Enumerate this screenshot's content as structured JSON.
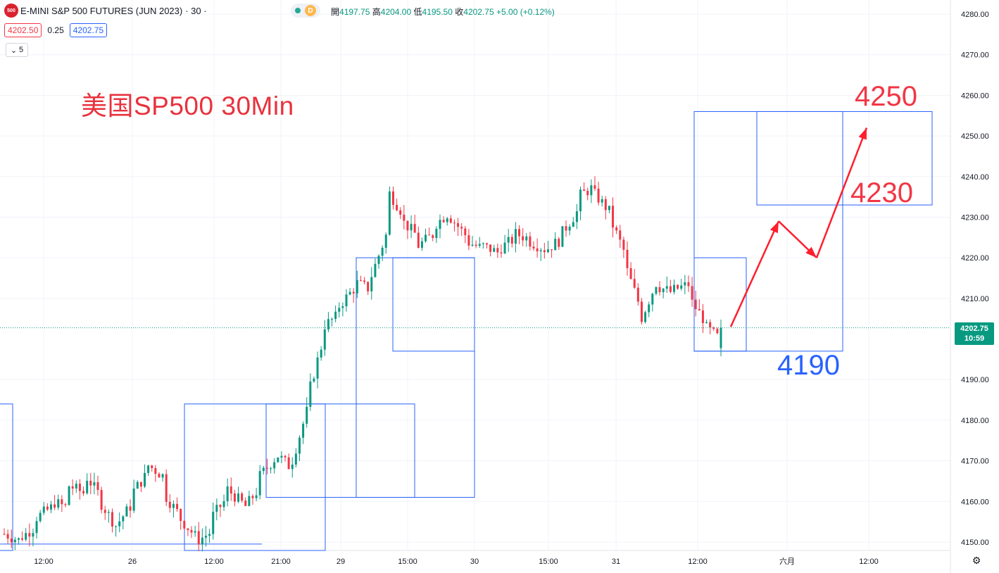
{
  "header": {
    "symbol_logo": "500",
    "title": "E-MINI S&P 500 FUTURES (JUN 2023)",
    "resolution": "· 30 ·",
    "status_badge": "D",
    "ohlc": {
      "open_label": "開",
      "open": "4197.75",
      "high_label": "高",
      "high": "4204.00",
      "low_label": "低",
      "low": "4195.50",
      "close_label": "收",
      "close": "4202.75",
      "change": "+5.00 (+0.12%)"
    }
  },
  "quote": {
    "sell": "4202.50",
    "spread": "0.25",
    "buy": "4202.75"
  },
  "indicator_toggle": {
    "icon": "chevron-down-icon",
    "count": "5"
  },
  "caption": "美国SP500 30Min",
  "annotations": {
    "target_high": "4250",
    "target_mid": "4230",
    "support": "4190"
  },
  "last_price_tag": {
    "price": "4202.75",
    "countdown": "10:59"
  },
  "settings_icon": "gear-icon",
  "colors": {
    "up": "#089981",
    "down": "#f23645",
    "box": "#2962ff",
    "arrow": "#ff1e2d"
  },
  "chart_data": {
    "type": "candlestick",
    "y_axis_ticks": [
      4280,
      4270,
      4260,
      4250,
      4240,
      4230,
      4220,
      4210,
      4190,
      4180,
      4170,
      4160,
      4150
    ],
    "ylim": [
      4148,
      4282
    ],
    "x_axis_labels": [
      "12:00",
      "26",
      "12:00",
      "21:00",
      "29",
      "15:00",
      "30",
      "15:00",
      "31",
      "12:00",
      "六月",
      "12:00"
    ],
    "last_price": 4202.75,
    "price_path": [
      [
        4152,
        4150
      ],
      [
        4151,
        4153
      ],
      [
        4156,
        4158
      ],
      [
        4160,
        4156
      ],
      [
        4164,
        4160
      ],
      [
        4167,
        4162
      ],
      [
        4160,
        4154
      ],
      [
        4154,
        4158
      ],
      [
        4162,
        4166
      ],
      [
        4169,
        4168
      ],
      [
        4162,
        4157
      ],
      [
        4156,
        4152
      ],
      [
        4150,
        4151
      ],
      [
        4156,
        4160
      ],
      [
        4163,
        4160
      ],
      [
        4158,
        4162
      ],
      [
        4166,
        4170
      ],
      [
        4172,
        4168
      ],
      [
        4169,
        4181
      ],
      [
        4185,
        4198
      ],
      [
        4203,
        4205
      ],
      [
        4208,
        4212
      ],
      [
        4214,
        4211
      ],
      [
        4215,
        4221
      ],
      [
        4237,
        4232
      ],
      [
        4229,
        4226
      ],
      [
        4223,
        4225
      ],
      [
        4228,
        4232
      ],
      [
        4230,
        4226
      ],
      [
        4224,
        4222
      ],
      [
        4223,
        4221
      ],
      [
        4222,
        4224
      ],
      [
        4226,
        4225
      ],
      [
        4224,
        4222
      ],
      [
        4222,
        4224
      ],
      [
        4226,
        4230
      ],
      [
        4235,
        4238
      ],
      [
        4236,
        4232
      ],
      [
        4230,
        4222
      ],
      [
        4218,
        4208
      ],
      [
        4205,
        4215
      ],
      [
        4213,
        4211
      ],
      [
        4212,
        4215
      ],
      [
        4210,
        4205
      ],
      [
        4203,
        4201
      ],
      [
        4197,
        4202.75
      ]
    ],
    "boxes": [
      {
        "from": "26 21:00",
        "to": "29 03:00",
        "low": 4161,
        "high": 4184
      },
      {
        "from": "29 03:00",
        "to": "29 14:00",
        "low": 4161,
        "high": 4184
      },
      {
        "from": "29 08:00",
        "to": "30 00:00",
        "low": 4161,
        "high": 4220
      },
      {
        "from": "29 13:00",
        "to": "30 00:00",
        "low": 4197,
        "high": 4220
      },
      {
        "from": "31 12:00",
        "to": "31 17:00",
        "low": 4197,
        "high": 4220
      },
      {
        "from": "31 12:00",
        "to": "六月 05:00",
        "low": 4197,
        "high": 4256
      },
      {
        "from": "31 21:00",
        "to": "六月 12:00",
        "low": 4233,
        "high": 4256
      }
    ],
    "projected_path": [
      [
        4202,
        "31 16:00"
      ],
      [
        4229,
        "31 21:00"
      ],
      [
        4220,
        "六月 02:00"
      ],
      [
        4252,
        "六月 05:00"
      ]
    ],
    "grid": true
  }
}
